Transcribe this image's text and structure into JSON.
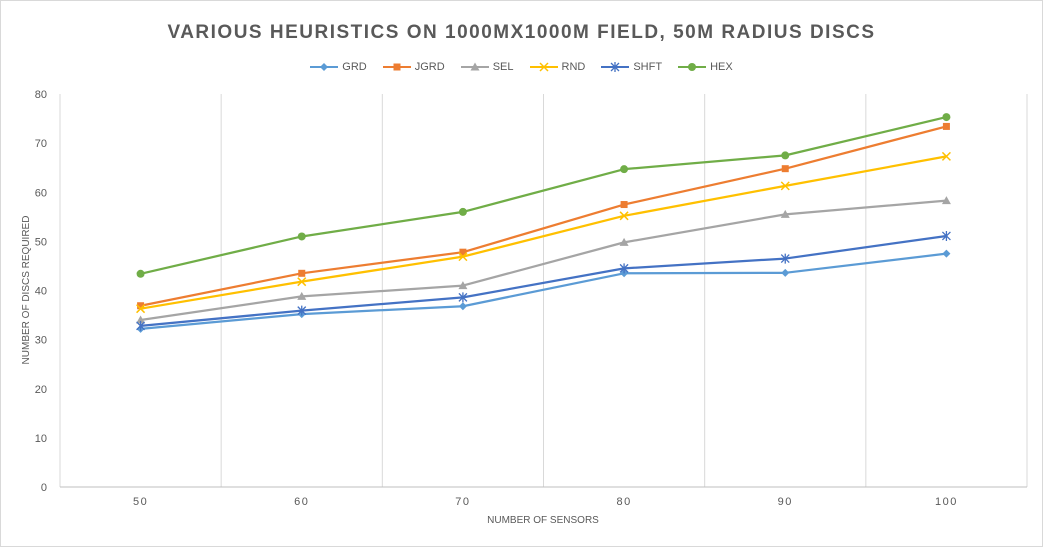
{
  "chart_data": {
    "type": "line",
    "title": "VARIOUS HEURISTICS ON 1000MX1000M FIELD, 50M RADIUS DISCS",
    "xlabel": "NUMBER OF SENSORS",
    "ylabel": "NUMBER OF DISCS REQUIRED",
    "categories": [
      "50",
      "60",
      "70",
      "80",
      "90",
      "100"
    ],
    "ylim": [
      0,
      80
    ],
    "yticks": [
      "0",
      "10",
      "20",
      "30",
      "40",
      "50",
      "60",
      "70",
      "80"
    ],
    "grid": "vertical",
    "legend_position": "top",
    "series": [
      {
        "name": "GRD",
        "color": "#5B9BD5",
        "marker": "diamond",
        "values": [
          32.2,
          35.2,
          36.8,
          43.5,
          43.6,
          47.5
        ]
      },
      {
        "name": "JGRD",
        "color": "#ED7D31",
        "marker": "square",
        "values": [
          36.9,
          43.5,
          47.8,
          57.5,
          64.8,
          73.4
        ]
      },
      {
        "name": "SEL",
        "color": "#A5A5A5",
        "marker": "triangle",
        "values": [
          34.0,
          38.8,
          41.0,
          49.8,
          55.5,
          58.3
        ]
      },
      {
        "name": "RND",
        "color": "#FFC000",
        "marker": "x",
        "values": [
          36.3,
          41.8,
          46.9,
          55.2,
          61.3,
          67.3
        ]
      },
      {
        "name": "SHFT",
        "color": "#4472C4",
        "marker": "star",
        "values": [
          32.8,
          35.9,
          38.6,
          44.5,
          46.5,
          51.1
        ]
      },
      {
        "name": "HEX",
        "color": "#70AD47",
        "marker": "circle",
        "values": [
          43.4,
          51.0,
          56.0,
          64.7,
          67.5,
          75.3
        ]
      }
    ]
  }
}
